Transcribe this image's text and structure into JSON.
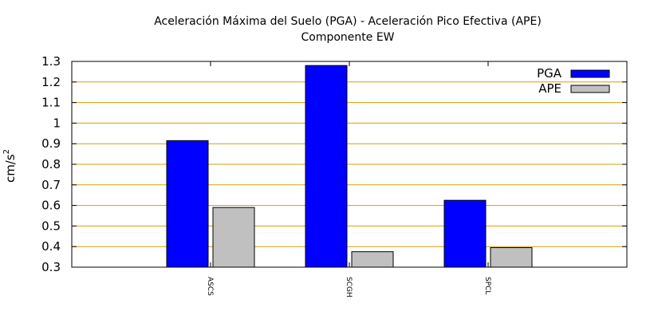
{
  "chart_data": {
    "type": "bar",
    "title": "Aceleración Máxima del Suelo (PGA) -  Aceleración Pico Efectiva (APE)",
    "subtitle": "Componente EW",
    "ylabel": "cm/s",
    "ylabel_superscript": "2",
    "xlabel": "",
    "categories": [
      "ASCS",
      "SCGH",
      "SPCL"
    ],
    "series": [
      {
        "name": "PGA",
        "values": [
          0.915,
          1.28,
          0.625
        ],
        "color": "#0000ff"
      },
      {
        "name": "APE",
        "values": [
          0.59,
          0.375,
          0.395
        ],
        "color": "#c0c0c0"
      }
    ],
    "ylim": [
      0.3,
      1.3
    ],
    "yticks": [
      "0.3",
      "0.4",
      "0.5",
      "0.6",
      "0.7",
      "0.8",
      "0.9",
      "1",
      "1.1",
      "1.2",
      "1.3"
    ],
    "grid": true,
    "grid_color": "#d8a000",
    "legend_position": "top-right"
  }
}
